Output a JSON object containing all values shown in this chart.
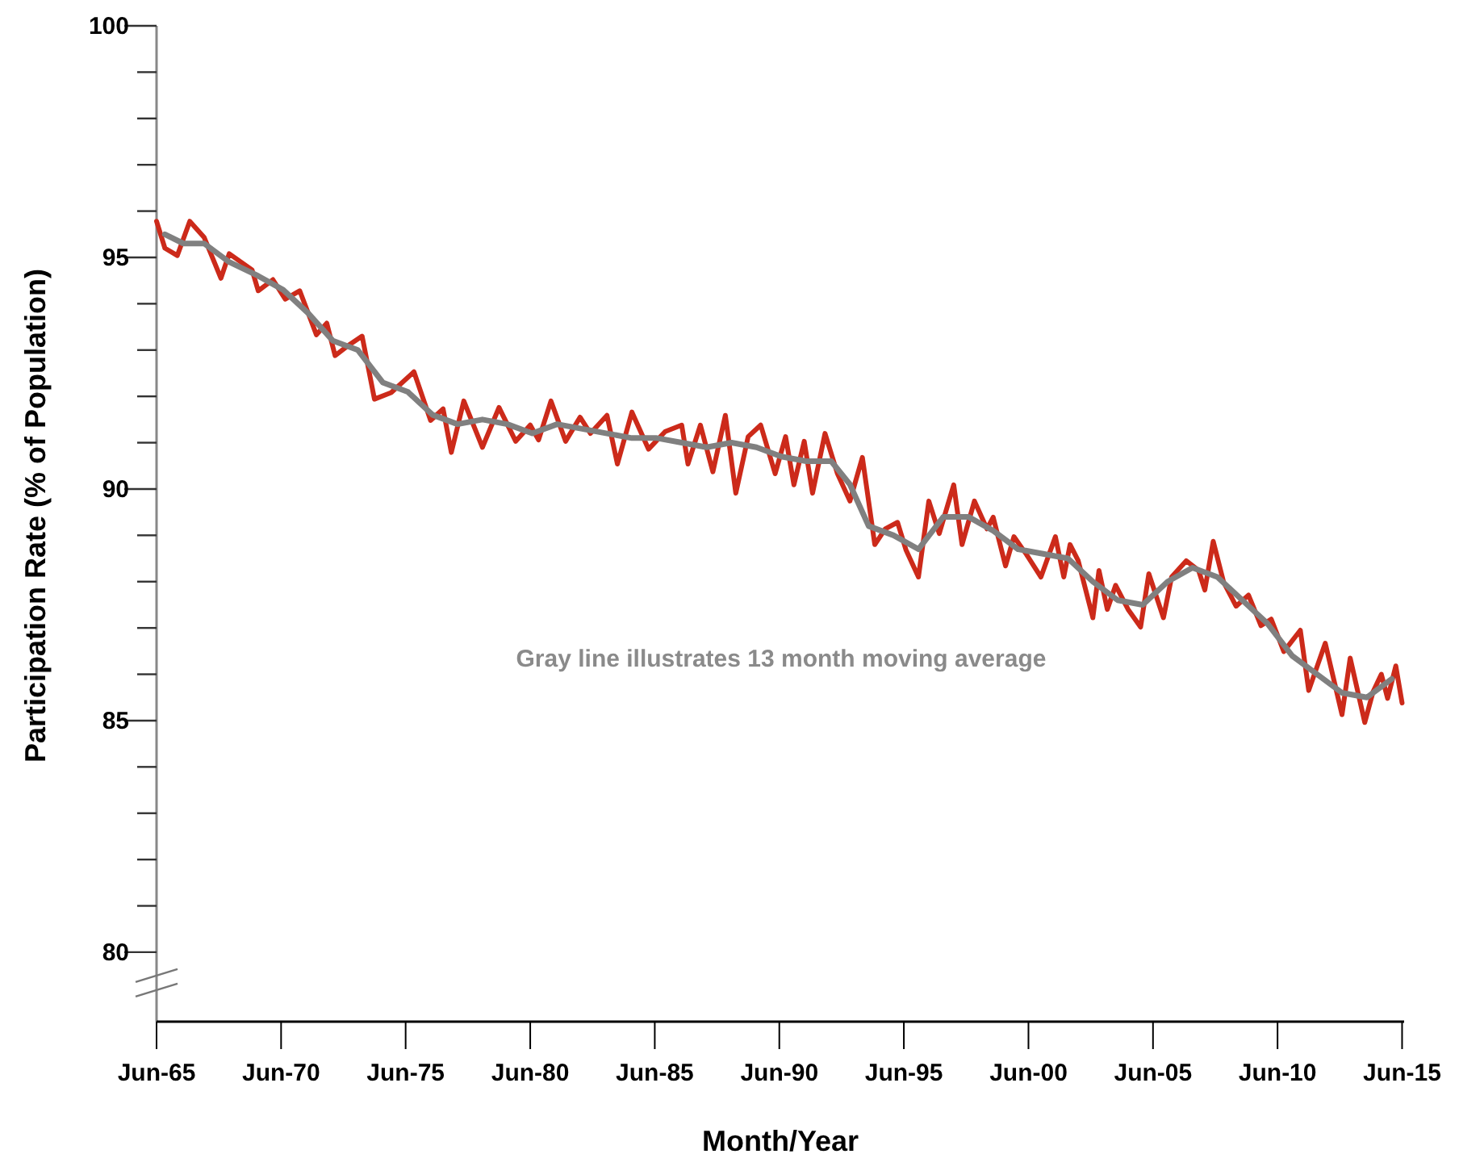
{
  "chart_data": {
    "type": "line",
    "xlabel": "Month/Year",
    "ylabel": "Participation Rate (% of Population)",
    "xlim": [
      "1965-06",
      "2015-07"
    ],
    "ylim": [
      78.5,
      100
    ],
    "xticks": [
      {
        "value": "1965-06",
        "label": "Jun-65"
      },
      {
        "value": "1970-06",
        "label": "Jun-70"
      },
      {
        "value": "1975-06",
        "label": "Jun-75"
      },
      {
        "value": "1980-06",
        "label": "Jun-80"
      },
      {
        "value": "1985-06",
        "label": "Jun-85"
      },
      {
        "value": "1990-06",
        "label": "Jun-90"
      },
      {
        "value": "1995-06",
        "label": "Jun-95"
      },
      {
        "value": "2000-06",
        "label": "Jun-00"
      },
      {
        "value": "2005-06",
        "label": "Jun-05"
      },
      {
        "value": "2010-06",
        "label": "Jun-10"
      },
      {
        "value": "2015-06",
        "label": "Jun-15"
      }
    ],
    "yticks": [
      80,
      {
        "value": 81,
        "label": null
      },
      {
        "value": 82,
        "label": null
      },
      {
        "value": 83,
        "label": null
      },
      {
        "value": 84,
        "label": null
      },
      85,
      {
        "value": 86,
        "label": null
      },
      {
        "value": 87,
        "label": null
      },
      {
        "value": 88,
        "label": null
      },
      {
        "value": 89,
        "label": null
      },
      90,
      {
        "value": 91,
        "label": null
      },
      {
        "value": 92,
        "label": null
      },
      {
        "value": 93,
        "label": null
      },
      {
        "value": 94,
        "label": null
      },
      95,
      {
        "value": 96,
        "label": null
      },
      {
        "value": 97,
        "label": null
      },
      {
        "value": 98,
        "label": null
      },
      {
        "value": 99,
        "label": null
      },
      100
    ],
    "grid": false,
    "marker": "none",
    "line_style": "solid",
    "annotations": [
      "Gray line illustrates 13 month moving average"
    ],
    "series": [
      {
        "color": "#cc2a1a",
        "x": [
          "1965-06",
          "1965-10",
          "1966-04",
          "1966-10",
          "1967-05",
          "1968-01",
          "1968-05",
          "1969-04",
          "1969-07",
          "1970-02",
          "1970-08",
          "1971-03",
          "1971-11",
          "1972-04",
          "1972-08",
          "1973-03",
          "1973-09",
          "1974-03",
          "1974-11",
          "1975-10",
          "1976-06",
          "1976-12",
          "1977-04",
          "1977-10",
          "1978-07",
          "1979-03",
          "1979-11",
          "1980-06",
          "1980-10",
          "1981-04",
          "1981-11",
          "1982-06",
          "1982-11",
          "1983-07",
          "1983-12",
          "1984-07",
          "1985-03",
          "1985-11",
          "1986-07",
          "1986-10",
          "1987-04",
          "1987-10",
          "1988-04",
          "1988-09",
          "1989-03",
          "1989-09",
          "1990-04",
          "1990-09",
          "1991-01",
          "1991-06",
          "1991-10",
          "1992-04",
          "1992-10",
          "1993-04",
          "1993-10",
          "1994-04",
          "1994-09",
          "1995-03",
          "1995-07",
          "1996-01",
          "1996-06",
          "1996-11",
          "1997-06",
          "1997-10",
          "1998-04",
          "1998-10",
          "1999-01",
          "1999-07",
          "1999-11",
          "2000-05",
          "2000-12",
          "2001-07",
          "2001-11",
          "2002-02",
          "2002-06",
          "2003-01",
          "2003-04",
          "2003-08",
          "2003-12",
          "2004-06",
          "2004-12",
          "2005-04",
          "2005-11",
          "2006-03",
          "2006-10",
          "2007-04",
          "2007-07",
          "2007-11",
          "2008-04",
          "2008-10",
          "2009-04",
          "2009-10",
          "2010-03",
          "2010-09",
          "2011-05",
          "2011-09",
          "2012-05",
          "2013-01",
          "2013-05",
          "2013-12",
          "2014-04",
          "2014-08",
          "2014-11",
          "2015-03",
          "2015-06"
        ],
        "values": [
          95.78,
          95.2,
          95.04,
          95.78,
          95.43,
          94.55,
          95.08,
          94.73,
          94.28,
          94.52,
          94.1,
          94.28,
          93.33,
          93.58,
          92.88,
          93.12,
          93.3,
          91.94,
          92.08,
          92.53,
          91.48,
          91.73,
          90.79,
          91.9,
          90.9,
          91.76,
          91.03,
          91.38,
          91.06,
          91.9,
          91.03,
          91.55,
          91.2,
          91.59,
          90.54,
          91.66,
          90.86,
          91.24,
          91.38,
          90.54,
          91.38,
          90.37,
          91.59,
          89.91,
          91.13,
          91.38,
          90.33,
          91.13,
          90.09,
          91.03,
          89.91,
          91.2,
          90.33,
          89.74,
          90.68,
          88.8,
          89.14,
          89.28,
          88.69,
          88.1,
          89.74,
          89.04,
          90.09,
          88.8,
          89.74,
          89.14,
          89.39,
          88.34,
          88.97,
          88.59,
          88.1,
          88.97,
          88.1,
          88.8,
          88.45,
          87.22,
          88.24,
          87.4,
          87.92,
          87.4,
          87.02,
          88.17,
          87.22,
          88.1,
          88.45,
          88.24,
          87.82,
          88.87,
          87.99,
          87.47,
          87.71,
          87.05,
          87.19,
          86.49,
          86.95,
          85.65,
          86.67,
          85.13,
          86.35,
          84.96,
          85.62,
          86.0,
          85.48,
          86.18,
          85.38
        ]
      },
      {
        "color": "#808080",
        "x": [
          "1965-10",
          "1966-07",
          "1967-05",
          "1968-05",
          "1969-07",
          "1970-07",
          "1971-07",
          "1972-07",
          "1973-07",
          "1974-07",
          "1975-07",
          "1976-07",
          "1977-07",
          "1978-07",
          "1979-07",
          "1980-07",
          "1981-07",
          "1982-07",
          "1983-07",
          "1984-07",
          "1985-07",
          "1986-07",
          "1987-07",
          "1988-07",
          "1989-07",
          "1990-07",
          "1991-07",
          "1992-07",
          "1993-04",
          "1994-01",
          "1995-01",
          "1996-01",
          "1997-01",
          "1998-01",
          "1999-01",
          "2000-01",
          "2001-01",
          "2002-01",
          "2003-01",
          "2004-01",
          "2005-01",
          "2006-01",
          "2007-01",
          "2008-01",
          "2009-01",
          "2010-01",
          "2011-01",
          "2012-01",
          "2013-01",
          "2014-01",
          "2015-01"
        ],
        "values": [
          95.5,
          95.3,
          95.3,
          94.9,
          94.6,
          94.3,
          93.8,
          93.2,
          93.0,
          92.3,
          92.1,
          91.6,
          91.4,
          91.5,
          91.4,
          91.2,
          91.4,
          91.3,
          91.2,
          91.1,
          91.1,
          91.0,
          90.9,
          91.0,
          90.9,
          90.7,
          90.6,
          90.6,
          90.1,
          89.2,
          89.0,
          88.7,
          89.4,
          89.4,
          89.1,
          88.7,
          88.6,
          88.5,
          88.0,
          87.6,
          87.5,
          88.0,
          88.3,
          88.1,
          87.6,
          87.1,
          86.4,
          86.0,
          85.6,
          85.5,
          85.9
        ]
      }
    ]
  }
}
